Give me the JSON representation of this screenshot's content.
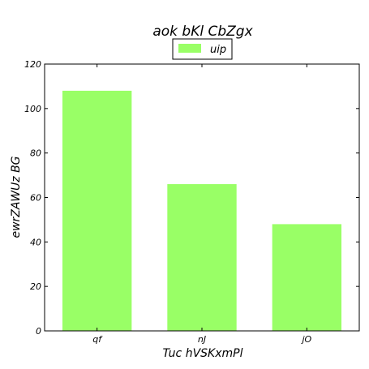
{
  "chart_data": {
    "type": "bar",
    "title": "aok bKl  CbZgx",
    "xlabel": "Tuc hVSKxmPl",
    "ylabel": "ewrZAWUz BG",
    "categories": [
      "qf",
      "nJ",
      "jO"
    ],
    "series": [
      {
        "name": "uip",
        "values": [
          108,
          66,
          48
        ],
        "color": "#99ff66"
      }
    ],
    "ylim": [
      0,
      120
    ],
    "yticks": [
      0,
      20,
      40,
      60,
      80,
      100,
      120
    ],
    "grid": false,
    "legend_position": "top-center"
  }
}
